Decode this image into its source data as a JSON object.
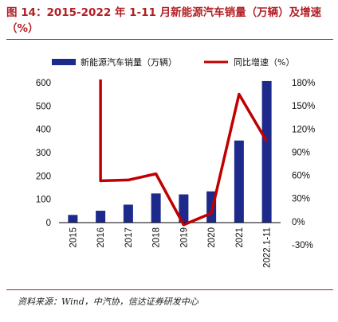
{
  "title": "图 14：2015-2022 年 1-11 月新能源汽车销量（万辆）及增速（%）",
  "source": "资料来源：Wind，中汽协，信达证券研发中心",
  "colors": {
    "bar": "#1d2a8c",
    "line": "#c00000",
    "title": "#b21f24"
  },
  "chart_data": {
    "type": "bar",
    "categories": [
      "2015",
      "2016",
      "2017",
      "2018",
      "2019",
      "2020",
      "2021",
      "2022.1-11"
    ],
    "series": [
      {
        "name": "新能源汽车销量（万辆）",
        "type": "bar",
        "axis": "left",
        "values": [
          33,
          51,
          77,
          125,
          121,
          134,
          352,
          607
        ]
      },
      {
        "name": "同比增速（%）",
        "type": "line",
        "axis": "right",
        "values": [
          null,
          53,
          54,
          62,
          -4,
          11,
          165,
          104
        ]
      }
    ],
    "left_axis": {
      "ylim": [
        0,
        600
      ],
      "ticks": [
        "0",
        "100",
        "200",
        "300",
        "400",
        "500",
        "600"
      ]
    },
    "right_axis": {
      "ylim": [
        -30,
        180
      ],
      "ticks": [
        "-30%",
        "0%",
        "30%",
        "60%",
        "90%",
        "120%",
        "150%",
        "180%"
      ]
    },
    "legend_position": "top",
    "grid": false
  }
}
